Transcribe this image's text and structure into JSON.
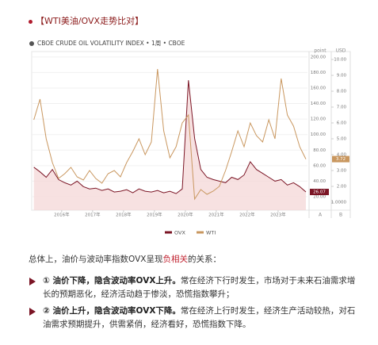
{
  "header": {
    "title": "【WTI美油/OVX走势比对】"
  },
  "chart_data": {
    "type": "line",
    "subtitle": "CBOE CRUDE OIL VOLATILITY INDEX • 1周 • CBOE",
    "y_label": "point",
    "y2_label": "USD",
    "axis_footers": [
      "A",
      "B"
    ],
    "x": [
      2015.1,
      2015.3,
      2015.5,
      2015.7,
      2015.9,
      2016.1,
      2016.3,
      2016.5,
      2016.7,
      2016.9,
      2017.1,
      2017.3,
      2017.5,
      2017.7,
      2017.9,
      2018.1,
      2018.3,
      2018.5,
      2018.7,
      2018.9,
      2019.1,
      2019.3,
      2019.5,
      2019.7,
      2019.9,
      2020.1,
      2020.3,
      2020.5,
      2020.7,
      2020.9,
      2021.1,
      2021.3,
      2021.5,
      2021.7,
      2021.9,
      2022.1,
      2022.3,
      2022.5,
      2022.7,
      2022.9,
      2023.1,
      2023.3,
      2023.5,
      2023.7,
      2023.9
    ],
    "xlim": [
      2015.03,
      2023.95
    ],
    "xticks": [
      {
        "value": 2016,
        "label": "2016年"
      },
      {
        "value": 2017,
        "label": "2017年"
      },
      {
        "value": 2018,
        "label": "2018年"
      },
      {
        "value": 2019,
        "label": "2019年"
      },
      {
        "value": 2020,
        "label": "2020年"
      },
      {
        "value": 2021,
        "label": "2021年"
      },
      {
        "value": 2022,
        "label": "2022年"
      },
      {
        "value": 2023,
        "label": "2023年"
      }
    ],
    "ylim": [
      2.6,
      207
    ],
    "yticks": [
      {
        "value": 200,
        "label": "200.00"
      },
      {
        "value": 180,
        "label": "180.00"
      },
      {
        "value": 160,
        "label": "160.00"
      },
      {
        "value": 140,
        "label": "140.00"
      },
      {
        "value": 120,
        "label": "120.00"
      },
      {
        "value": 100,
        "label": "100.00"
      },
      {
        "value": 80,
        "label": "80.00"
      },
      {
        "value": 60,
        "label": "60.00"
      },
      {
        "value": 40,
        "label": "40.00"
      },
      {
        "value": 20,
        "label": "20.00"
      }
    ],
    "y2lim": [
      0.5,
      10.5
    ],
    "y2ticks": [
      {
        "value": 10,
        "label": "10.00"
      },
      {
        "value": 9,
        "label": "9.00"
      },
      {
        "value": 8,
        "label": "8.00"
      },
      {
        "value": 7,
        "label": "7.00"
      },
      {
        "value": 6,
        "label": "6.00"
      },
      {
        "value": 5,
        "label": "5.00"
      },
      {
        "value": 4,
        "label": "4.00"
      },
      {
        "value": 3,
        "label": "3.00"
      },
      {
        "value": 2,
        "label": "2.00"
      },
      {
        "value": 1,
        "label": "1.0000"
      }
    ],
    "grid": true,
    "series": [
      {
        "name": "OVX",
        "color": "#7b1525",
        "area_color": "#f5d9d9",
        "values": [
          58,
          52,
          45,
          55,
          42,
          38,
          35,
          40,
          33,
          30,
          31,
          28,
          30,
          26,
          27,
          29,
          25,
          30,
          27,
          26,
          28,
          25,
          27,
          24,
          30,
          170,
          95,
          55,
          45,
          42,
          40,
          38,
          45,
          42,
          48,
          65,
          55,
          50,
          45,
          40,
          42,
          35,
          38,
          33,
          26.07
        ]
      },
      {
        "name": "WTI",
        "color": "#c9975f",
        "axis": "y2",
        "values": [
          6.2,
          7.5,
          5.0,
          3.5,
          2.5,
          2.8,
          3.2,
          2.6,
          2.4,
          3.0,
          2.5,
          2.2,
          2.8,
          3.0,
          2.6,
          3.5,
          4.2,
          5.0,
          4.0,
          4.8,
          9.4,
          5.5,
          3.8,
          4.5,
          6.0,
          6.5,
          1.2,
          1.8,
          1.5,
          1.7,
          2.0,
          3.0,
          4.2,
          5.5,
          4.5,
          6.0,
          5.2,
          4.8,
          6.2,
          5.0,
          8.8,
          6.5,
          5.8,
          4.5,
          3.72
        ]
      }
    ]
  },
  "summary": {
    "intro": [
      "总体上，油价与波动率指数OVX呈现",
      "负相关",
      "的关系："
    ],
    "bullets": [
      {
        "bold": "① 油价下降，隐含波动率OVX上升。",
        "text": "常在经济下行时发生，市场对于未来石油需求增长的预期恶化，经济活动趋于惨淡，恐慌指数攀升；"
      },
      {
        "bold": "② 油价上升，隐含波动率OVX下降。",
        "text": "常在经济上行时发生，经济生产活动较热，对石油需求预期提升，供需紧俏，经济看好，恐慌指数下降。"
      }
    ]
  }
}
